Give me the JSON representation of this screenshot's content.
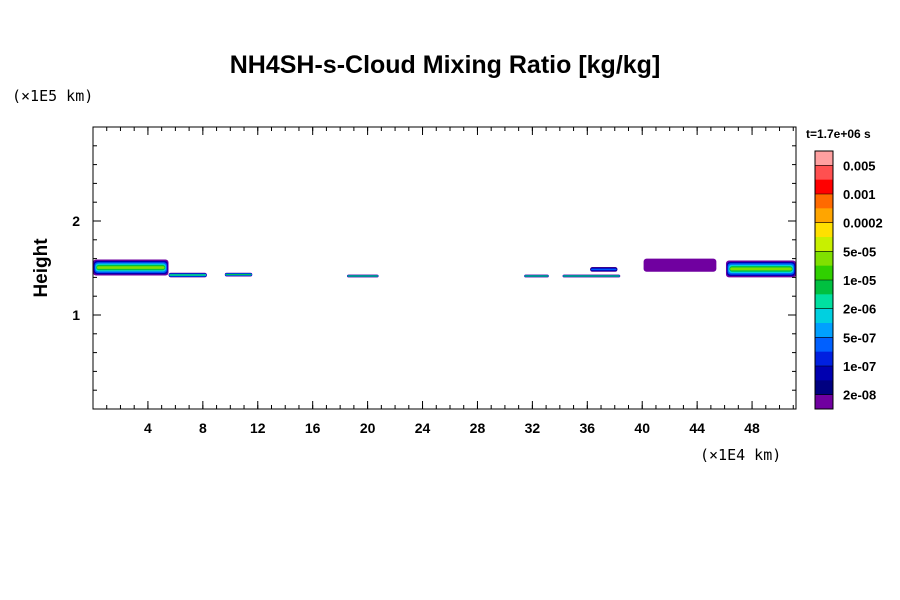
{
  "chart_data": {
    "type": "heatmap",
    "title": "NH4SH-s-Cloud Mixing Ratio [kg/kg]",
    "ylabel": "Height",
    "x_unit_label": "(×1E4 km)",
    "y_unit_label": "(×1E5 km)",
    "time_label": "t=1.7e+06 s",
    "xlim": [
      0,
      51.2
    ],
    "ylim": [
      0,
      3.0
    ],
    "x_ticks": [
      4,
      8,
      12,
      16,
      20,
      24,
      28,
      32,
      36,
      40,
      44,
      48
    ],
    "y_ticks": [
      1,
      2
    ],
    "legend": {
      "labels": [
        "0.005",
        "0.001",
        "0.0002",
        "5e-05",
        "1e-05",
        "2e-06",
        "5e-07",
        "1e-07",
        "2e-08"
      ],
      "colors": [
        "#ffa0a0",
        "#ff5050",
        "#ff0000",
        "#ff6a00",
        "#ffa500",
        "#ffe000",
        "#c8f000",
        "#80e000",
        "#30d000",
        "#00c040",
        "#00e0a0",
        "#00d0e0",
        "#00a0ff",
        "#0060ff",
        "#0020e0",
        "#0000b0",
        "#000080",
        "#7000a0"
      ]
    },
    "cloud_patches": [
      {
        "x": [
          0.0,
          5.5
        ],
        "y": [
          1.42,
          1.59
        ],
        "level": "5e-05"
      },
      {
        "x": [
          5.5,
          8.3
        ],
        "y": [
          1.4,
          1.45
        ],
        "level": "1e-05"
      },
      {
        "x": [
          9.6,
          11.6
        ],
        "y": [
          1.41,
          1.45
        ],
        "level": "1e-05"
      },
      {
        "x": [
          18.5,
          20.8
        ],
        "y": [
          1.4,
          1.43
        ],
        "level": "1e-05"
      },
      {
        "x": [
          31.4,
          33.2
        ],
        "y": [
          1.4,
          1.43
        ],
        "level": "1e-05"
      },
      {
        "x": [
          34.2,
          38.4
        ],
        "y": [
          1.4,
          1.43
        ],
        "level": "1e-05"
      },
      {
        "x": [
          36.2,
          38.2
        ],
        "y": [
          1.46,
          1.51
        ],
        "level": "5e-07"
      },
      {
        "x": [
          40.1,
          45.4
        ],
        "y": [
          1.46,
          1.6
        ],
        "level": "2e-08"
      },
      {
        "x": [
          46.1,
          51.2
        ],
        "y": [
          1.4,
          1.58
        ],
        "level": "5e-05"
      }
    ]
  }
}
